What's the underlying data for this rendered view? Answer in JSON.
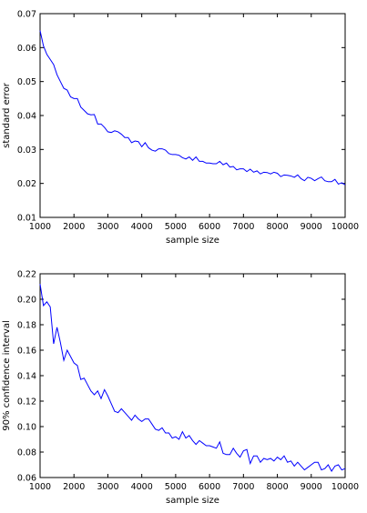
{
  "chart_data": [
    {
      "type": "line",
      "title": "",
      "xlabel": "sample size",
      "ylabel": "standard error",
      "xlim": [
        1000,
        10000
      ],
      "ylim": [
        0.01,
        0.07
      ],
      "x_ticks": [
        "1000",
        "2000",
        "3000",
        "4000",
        "5000",
        "6000",
        "7000",
        "8000",
        "9000",
        "10000"
      ],
      "y_ticks": [
        "0.01",
        "0.02",
        "0.03",
        "0.04",
        "0.05",
        "0.06",
        "0.07"
      ],
      "grid": false,
      "line_color": "#0000ff",
      "series": [
        {
          "x": [
            1000,
            1100,
            1200,
            1300,
            1400,
            1500,
            1600,
            1700,
            1800,
            1900,
            2000,
            2100,
            2200,
            2300,
            2400,
            2500,
            2600,
            2700,
            2800,
            2900,
            3000,
            3100,
            3200,
            3300,
            3400,
            3500,
            3600,
            3700,
            3800,
            3900,
            4000,
            4100,
            4200,
            4300,
            4400,
            4500,
            4600,
            4700,
            4800,
            4900,
            5000,
            5100,
            5200,
            5300,
            5400,
            5500,
            5600,
            5700,
            5800,
            5900,
            6000,
            6100,
            6200,
            6300,
            6400,
            6500,
            6600,
            6700,
            6800,
            6900,
            7000,
            7100,
            7200,
            7300,
            7400,
            7500,
            7600,
            7700,
            7800,
            7900,
            8000,
            8100,
            8200,
            8300,
            8400,
            8500,
            8600,
            8700,
            8800,
            8900,
            9000,
            9100,
            9200,
            9300,
            9400,
            9500,
            9600,
            9700,
            9800,
            9900,
            10000
          ],
          "values": [
            0.065,
            0.0605,
            0.058,
            0.0565,
            0.055,
            0.052,
            0.05,
            0.048,
            0.0475,
            0.0455,
            0.045,
            0.045,
            0.0425,
            0.0415,
            0.0405,
            0.0402,
            0.0403,
            0.0375,
            0.0375,
            0.0365,
            0.0352,
            0.035,
            0.0355,
            0.0352,
            0.0345,
            0.0335,
            0.0335,
            0.032,
            0.0325,
            0.0323,
            0.0308,
            0.032,
            0.0305,
            0.0298,
            0.0295,
            0.0302,
            0.0302,
            0.0298,
            0.0288,
            0.0285,
            0.0285,
            0.0283,
            0.0276,
            0.0272,
            0.0278,
            0.0268,
            0.0278,
            0.0265,
            0.0265,
            0.026,
            0.026,
            0.0258,
            0.0258,
            0.0265,
            0.0255,
            0.026,
            0.0248,
            0.025,
            0.024,
            0.0243,
            0.0243,
            0.0235,
            0.0242,
            0.0233,
            0.0237,
            0.0228,
            0.0233,
            0.0232,
            0.0228,
            0.0233,
            0.023,
            0.022,
            0.0225,
            0.0224,
            0.0222,
            0.0218,
            0.0225,
            0.0214,
            0.0208,
            0.0218,
            0.0215,
            0.0208,
            0.0214,
            0.0219,
            0.0208,
            0.0205,
            0.0205,
            0.0212,
            0.0198,
            0.0202,
            0.0196
          ]
        }
      ]
    },
    {
      "type": "line",
      "title": "",
      "xlabel": "sample size",
      "ylabel": "90% confidence interval",
      "xlim": [
        1000,
        10000
      ],
      "ylim": [
        0.06,
        0.22
      ],
      "x_ticks": [
        "1000",
        "2000",
        "3000",
        "4000",
        "5000",
        "6000",
        "7000",
        "8000",
        "9000",
        "10000"
      ],
      "y_ticks": [
        "0.06",
        "0.08",
        "0.10",
        "0.12",
        "0.14",
        "0.16",
        "0.18",
        "0.20",
        "0.22"
      ],
      "grid": false,
      "line_color": "#0000ff",
      "series": [
        {
          "x": [
            1000,
            1100,
            1200,
            1300,
            1400,
            1500,
            1600,
            1700,
            1800,
            1900,
            2000,
            2100,
            2200,
            2300,
            2400,
            2500,
            2600,
            2700,
            2800,
            2900,
            3000,
            3100,
            3200,
            3300,
            3400,
            3500,
            3600,
            3700,
            3800,
            3900,
            4000,
            4100,
            4200,
            4300,
            4400,
            4500,
            4600,
            4700,
            4800,
            4900,
            5000,
            5100,
            5200,
            5300,
            5400,
            5500,
            5600,
            5700,
            5800,
            5900,
            6000,
            6100,
            6200,
            6300,
            6400,
            6500,
            6600,
            6700,
            6800,
            6900,
            7000,
            7100,
            7200,
            7300,
            7400,
            7500,
            7600,
            7700,
            7800,
            7900,
            8000,
            8100,
            8200,
            8300,
            8400,
            8500,
            8600,
            8700,
            8800,
            8900,
            9000,
            9100,
            9200,
            9300,
            9400,
            9500,
            9600,
            9700,
            9800,
            9900,
            10000
          ],
          "values": [
            0.212,
            0.195,
            0.198,
            0.194,
            0.165,
            0.178,
            0.166,
            0.152,
            0.16,
            0.155,
            0.15,
            0.148,
            0.137,
            0.138,
            0.133,
            0.128,
            0.125,
            0.128,
            0.122,
            0.129,
            0.124,
            0.118,
            0.112,
            0.111,
            0.114,
            0.111,
            0.108,
            0.105,
            0.109,
            0.106,
            0.104,
            0.106,
            0.106,
            0.102,
            0.098,
            0.097,
            0.099,
            0.095,
            0.095,
            0.091,
            0.092,
            0.09,
            0.096,
            0.091,
            0.093,
            0.089,
            0.086,
            0.089,
            0.087,
            0.085,
            0.085,
            0.084,
            0.083,
            0.088,
            0.079,
            0.078,
            0.078,
            0.083,
            0.079,
            0.076,
            0.081,
            0.082,
            0.071,
            0.077,
            0.077,
            0.072,
            0.075,
            0.074,
            0.075,
            0.073,
            0.076,
            0.074,
            0.077,
            0.072,
            0.073,
            0.069,
            0.072,
            0.069,
            0.066,
            0.068,
            0.07,
            0.072,
            0.072,
            0.066,
            0.067,
            0.07,
            0.065,
            0.069,
            0.07,
            0.066,
            0.067
          ]
        }
      ]
    }
  ]
}
